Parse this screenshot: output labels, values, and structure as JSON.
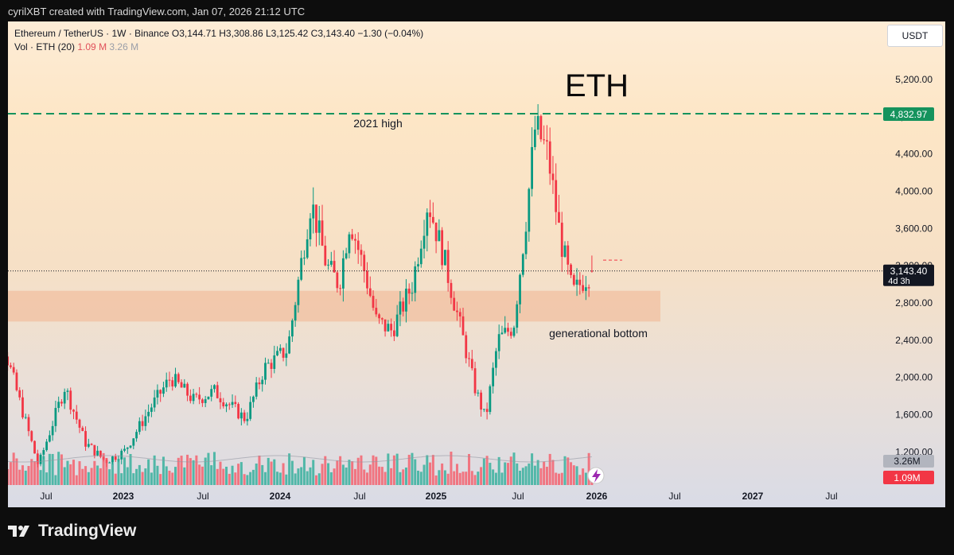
{
  "header": {
    "attribution": "cyrilXBT created with TradingView.com, Jan 07, 2026 21:12 UTC"
  },
  "legend": {
    "symbol": "Ethereum / TetherUS · 1W · Binance",
    "ohlc": "O3,144.71  H3,308.86  L3,125.42  C3,143.40  −1.30 (−0.04%)",
    "vol_label": "Vol · ETH (20)",
    "vol_value": "1.09 M",
    "vol_ma": "3.26 M"
  },
  "currency_button": "USDT",
  "footer": {
    "brand": "TradingView"
  },
  "chart_data": {
    "type": "candlestick",
    "title": "ETH",
    "annotations": {
      "high_label": "2021 high",
      "bottom_label": "generational bottom"
    },
    "resistance_level": 4832.97,
    "resistance_label": "4,832.97",
    "support_zone": [
      2600,
      2930
    ],
    "last_price": 3143.4,
    "last_price_label": "3,143.40",
    "countdown": "4d 3h",
    "y_axis": {
      "min": 1000,
      "max": 5600,
      "ticks": [
        1200,
        1600,
        2000,
        2400,
        2800,
        3200,
        3600,
        4000,
        4400,
        4800,
        5200
      ],
      "tick_labels": [
        "1,200.00",
        "1,600.00",
        "2,000.00",
        "2,400.00",
        "2,800.00",
        "3,200.00",
        "3,600.00",
        "4,000.00",
        "4,400.00",
        "4,800.00",
        "5,200.00"
      ]
    },
    "x_axis_labels": [
      "Jul",
      "2023",
      "Jul",
      "2024",
      "Jul",
      "2025",
      "Jul",
      "2026",
      "Jul",
      "2027",
      "Jul"
    ],
    "volume_labels": {
      "ma": "3.26M",
      "current": "1.09M"
    },
    "key_closes": [
      {
        "date": "2022-06",
        "close": 1100
      },
      {
        "date": "2022-08",
        "close": 1600
      },
      {
        "date": "2022-11",
        "close": 1150
      },
      {
        "date": "2023-04",
        "close": 2000
      },
      {
        "date": "2023-06",
        "close": 1650
      },
      {
        "date": "2023-10",
        "close": 1600
      },
      {
        "date": "2024-03",
        "close": 3900
      },
      {
        "date": "2024-08",
        "close": 2600
      },
      {
        "date": "2024-12",
        "close": 3900
      },
      {
        "date": "2025-04",
        "close": 1550
      },
      {
        "date": "2025-08",
        "close": 4800
      },
      {
        "date": "2025-11",
        "close": 2900
      },
      {
        "date": "2026-01",
        "close": 3143.4
      }
    ]
  }
}
